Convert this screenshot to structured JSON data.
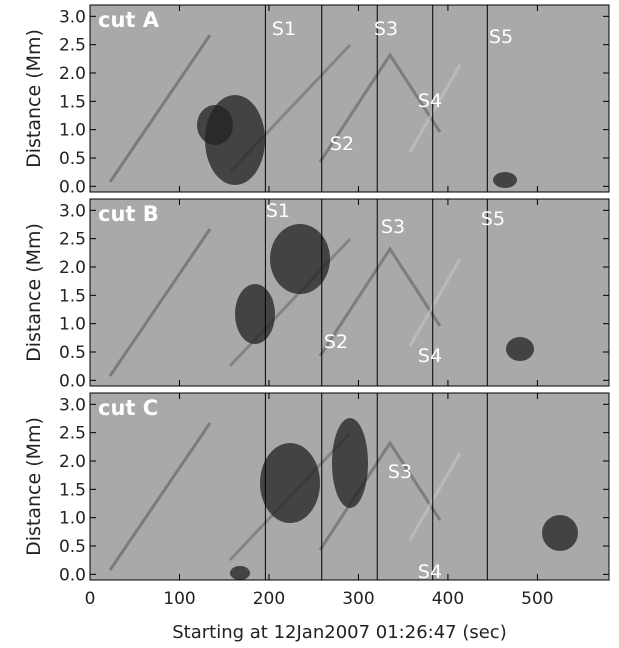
{
  "chart_data": [
    {
      "type": "image",
      "title": "cut A",
      "ylabel": "Distance  (Mm)",
      "xlim": [
        0,
        580
      ],
      "ylim": [
        -0.1,
        3.2
      ],
      "yticks": [
        {
          "value": 0,
          "label": "0.0"
        },
        0.5,
        {
          "value": 1,
          "label": "1.0"
        },
        1.5,
        {
          "value": 2,
          "label": "2.0"
        },
        2.5,
        {
          "value": 3,
          "label": "3.0"
        }
      ],
      "vlines": [
        196,
        259,
        321,
        383,
        444
      ],
      "labels": [
        "S1",
        "S2",
        "S3",
        "S4",
        "S5"
      ]
    },
    {
      "type": "image",
      "title": "cut B",
      "ylabel": "Distance  (Mm)",
      "xlim": [
        0,
        580
      ],
      "ylim": [
        -0.1,
        3.2
      ],
      "yticks": [
        {
          "value": 0,
          "label": "0.0"
        },
        0.5,
        {
          "value": 1,
          "label": "1.0"
        },
        1.5,
        {
          "value": 2,
          "label": "2.0"
        },
        2.5,
        {
          "value": 3,
          "label": "3.0"
        }
      ],
      "vlines": [
        196,
        259,
        321,
        383,
        444
      ],
      "labels": [
        "S1",
        "S2",
        "S3",
        "S4",
        "S5"
      ]
    },
    {
      "type": "image",
      "title": "cut C",
      "ylabel": "Distance  (Mm)",
      "xlabel": "Starting at 12Jan2007  01:26:47 (sec)",
      "xlim": [
        0,
        580
      ],
      "ylim": [
        -0.1,
        3.2
      ],
      "xticks": [
        0,
        100,
        200,
        300,
        400,
        500
      ],
      "yticks": [
        {
          "value": 0,
          "label": "0.0"
        },
        0.5,
        {
          "value": 1,
          "label": "1.0"
        },
        1.5,
        {
          "value": 2,
          "label": "2.0"
        },
        2.5,
        {
          "value": 3,
          "label": "3.0"
        }
      ],
      "vlines": [
        196,
        259,
        321,
        383,
        444
      ],
      "labels": [
        "S3",
        "S4"
      ]
    }
  ]
}
